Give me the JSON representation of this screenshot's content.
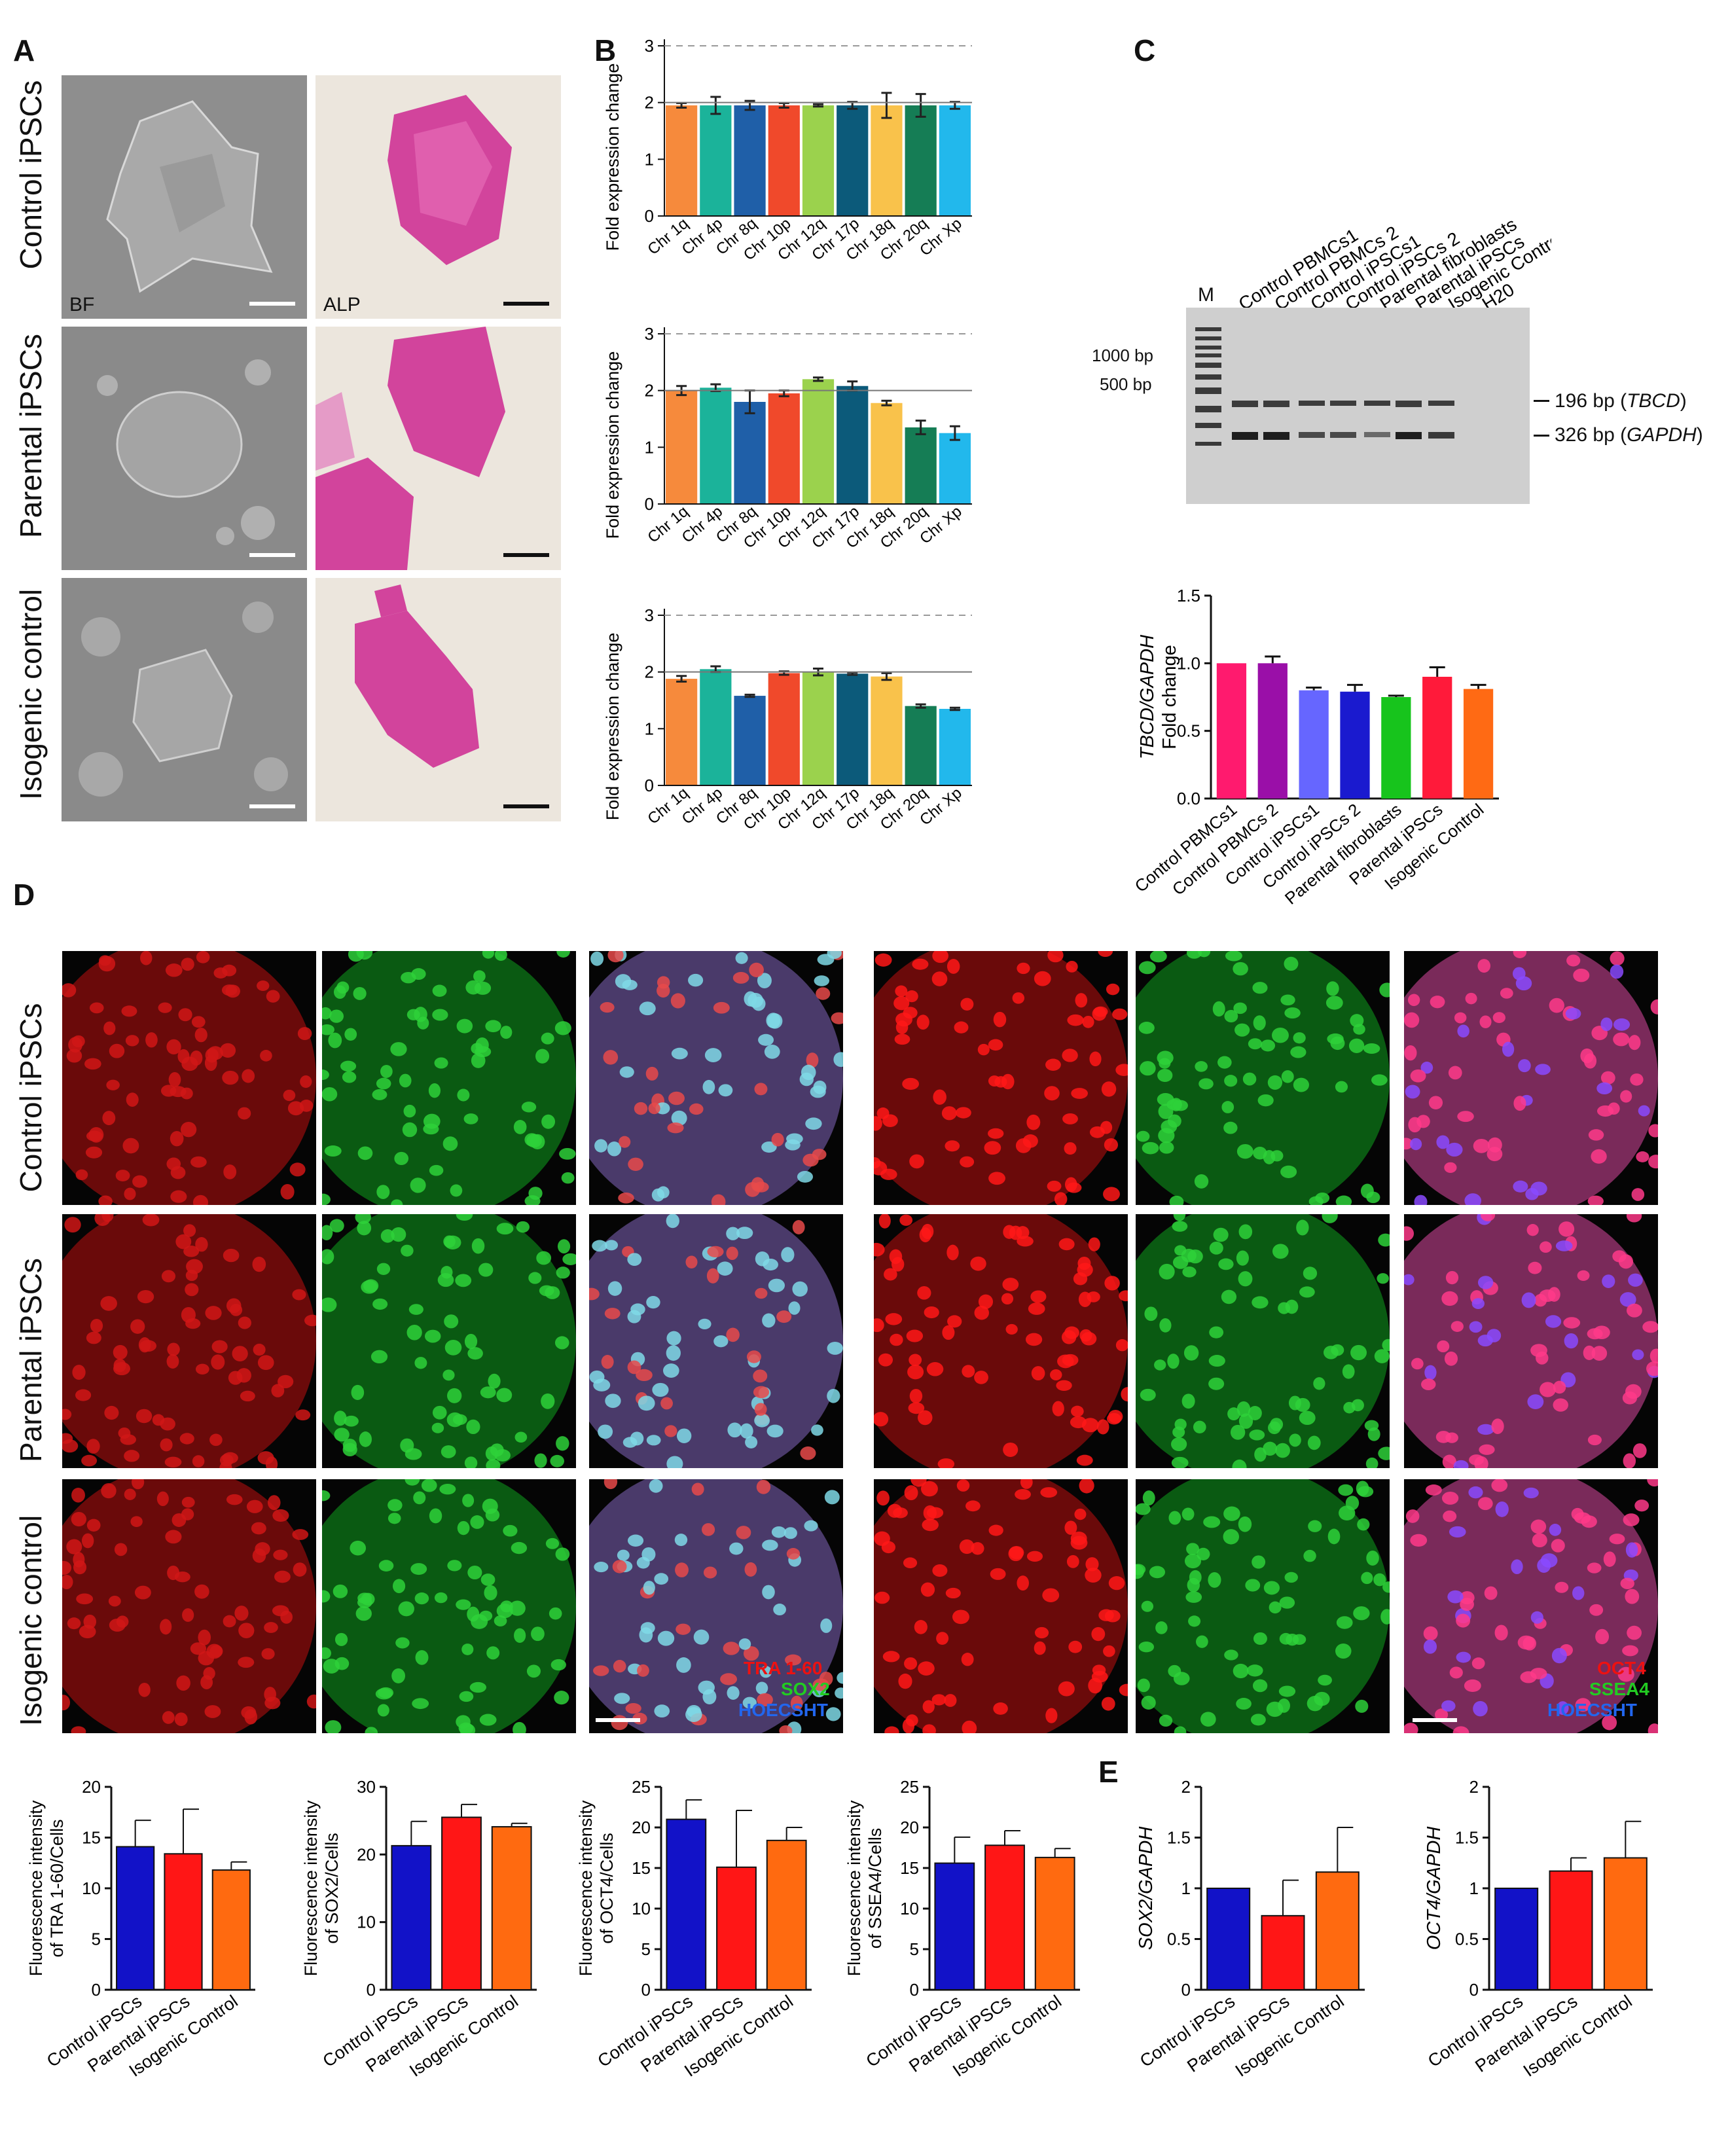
{
  "colors": {
    "chr": [
      "#f68a3c",
      "#1bb39a",
      "#1f5fa8",
      "#f0492b",
      "#9bd24d",
      "#0c5a7a",
      "#f9c24b",
      "#157d55",
      "#22b8ec"
    ],
    "c_chart": [
      "#ff1a6e",
      "#9a0fa8",
      "#6666ff",
      "#1a1acf",
      "#17c41c",
      "#ff1a3a",
      "#ff6a14"
    ],
    "trio": [
      "#1212c8",
      "#ff1616",
      "#ff6a10"
    ],
    "micro_red": "#c8141a",
    "micro_green": "#1fae2a",
    "micro_blue": "#1a2ad8",
    "alp_pink": "#d2449c"
  },
  "panels": {
    "A": "A",
    "B": "B",
    "C": "C",
    "D": "D",
    "E": "E"
  },
  "panel_a": {
    "rows": [
      "Control iPSCs",
      "Parental iPSCs",
      "Isogenic control"
    ],
    "tag_bf": "BF",
    "tag_alp": "ALP"
  },
  "panel_d": {
    "rows": [
      "Control iPSCs",
      "Parental iPSCs",
      "Isogenic control"
    ],
    "legend_left": [
      "TRA 1-60",
      "SOX2",
      "HOECSHT"
    ],
    "legend_right": [
      "OCT4",
      "SSEA4",
      "HOECSHT"
    ]
  },
  "gel": {
    "marker_label": "M",
    "lanes": [
      "Control PBMCs1",
      "Control PBMCs 2",
      "Control iPSCs1",
      "Control iPSCs 2",
      "Parental fibroblasts",
      "Parental iPSCs",
      "Isogenic Control",
      "H20"
    ],
    "ladder": [
      "1000 bp",
      "500 bp"
    ],
    "band_tbcd_size": "196 bp",
    "band_tbcd_gene": "TBCD",
    "band_gapdh_size": "326 bp",
    "band_gapdh_gene": "GAPDH"
  },
  "chart_data": [
    {
      "type": "bar",
      "id": "B1",
      "ylabel": "Fold expression change",
      "categories": [
        "Chr 1q",
        "Chr 4p",
        "Chr 8q",
        "Chr 10p",
        "Chr 12q",
        "Chr 17p",
        "Chr 18q",
        "Chr 20q",
        "Chr Xp"
      ],
      "values": [
        1.95,
        1.95,
        1.95,
        1.95,
        1.95,
        1.95,
        1.95,
        1.95,
        1.95
      ],
      "errors": [
        0.04,
        0.15,
        0.08,
        0.04,
        0.02,
        0.06,
        0.22,
        0.2,
        0.06
      ],
      "ylim": [
        0,
        3
      ],
      "yticks": [
        "0",
        "1",
        "2",
        "3"
      ],
      "refline": 2,
      "dashline": 3
    },
    {
      "type": "bar",
      "id": "B2",
      "ylabel": "Fold expression change",
      "categories": [
        "Chr 1q",
        "Chr 4p",
        "Chr 8q",
        "Chr 10p",
        "Chr 12q",
        "Chr 17p",
        "Chr 18q",
        "Chr 20q",
        "Chr Xp"
      ],
      "values": [
        2.0,
        2.05,
        1.8,
        1.95,
        2.2,
        2.08,
        1.78,
        1.35,
        1.25
      ],
      "errors": [
        0.08,
        0.06,
        0.2,
        0.05,
        0.03,
        0.08,
        0.04,
        0.12,
        0.12
      ],
      "ylim": [
        0,
        3
      ],
      "yticks": [
        "0",
        "1",
        "2",
        "3"
      ],
      "refline": 2,
      "dashline": 3
    },
    {
      "type": "bar",
      "id": "B3",
      "ylabel": "Fold expression change",
      "categories": [
        "Chr 1q",
        "Chr 4p",
        "Chr 8q",
        "Chr 10p",
        "Chr 12q",
        "Chr 17p",
        "Chr 18q",
        "Chr 20q",
        "Chr Xp"
      ],
      "values": [
        1.88,
        2.05,
        1.58,
        1.98,
        2.0,
        1.97,
        1.92,
        1.4,
        1.35
      ],
      "errors": [
        0.05,
        0.05,
        0.02,
        0.03,
        0.06,
        0.02,
        0.06,
        0.03,
        0.02
      ],
      "ylim": [
        0,
        3
      ],
      "yticks": [
        "0",
        "1",
        "2",
        "3"
      ],
      "refline": 2,
      "dashline": 3
    },
    {
      "type": "bar",
      "id": "C",
      "ylabel_gene": "TBCD/GAPDH",
      "ylabel": "Fold change",
      "categories": [
        "Control PBMCs1",
        "Control PBMCs 2",
        "Control iPSCs1",
        "Control iPSCs 2",
        "Parental fibroblasts",
        "Parental iPSCs",
        "Isogenic Control"
      ],
      "values": [
        1.0,
        1.0,
        0.8,
        0.79,
        0.75,
        0.9,
        0.81
      ],
      "errors": [
        0,
        0.05,
        0.02,
        0.05,
        0.01,
        0.07,
        0.03
      ],
      "ylim": [
        0,
        1.5
      ],
      "yticks": [
        "0.0",
        "0.5",
        "1.0",
        "1.5"
      ]
    },
    {
      "type": "bar",
      "id": "D1",
      "ylabel_line1": "Fluorescence intensity",
      "ylabel_line2": "of TRA 1-60/Cells",
      "categories": [
        "Control iPSCs",
        "Parental iPSCs",
        "Isogenic Control"
      ],
      "values": [
        14.1,
        13.4,
        11.8
      ],
      "errors": [
        2.6,
        4.4,
        0.8
      ],
      "ylim": [
        0,
        20
      ],
      "yticks": [
        "0",
        "5",
        "10",
        "15",
        "20"
      ]
    },
    {
      "type": "bar",
      "id": "D2",
      "ylabel_line1": "Fluorescence intensity",
      "ylabel_line2": "of SOX2/Cells",
      "categories": [
        "Control iPSCs",
        "Parental iPSCs",
        "Isogenic Control"
      ],
      "values": [
        21.3,
        25.5,
        24.1
      ],
      "errors": [
        3.6,
        1.9,
        0.5
      ],
      "ylim": [
        0,
        30
      ],
      "yticks": [
        "0",
        "10",
        "20",
        "30"
      ]
    },
    {
      "type": "bar",
      "id": "D3",
      "ylabel_line1": "Fluorescence intensity",
      "ylabel_line2": "of OCT4/Cells",
      "categories": [
        "Control iPSCs",
        "Parental iPSCs",
        "Isogenic Control"
      ],
      "values": [
        21.0,
        15.1,
        18.4
      ],
      "errors": [
        2.4,
        7.0,
        1.6
      ],
      "ylim": [
        0,
        25
      ],
      "yticks": [
        "0",
        "5",
        "10",
        "15",
        "20",
        "25"
      ]
    },
    {
      "type": "bar",
      "id": "D4",
      "ylabel_line1": "Fluorescence intensity",
      "ylabel_line2": "of SSEA4/Cells",
      "categories": [
        "Control iPSCs",
        "Parental iPSCs",
        "Isogenic Control"
      ],
      "values": [
        15.6,
        17.8,
        16.3
      ],
      "errors": [
        3.2,
        1.8,
        1.1
      ],
      "ylim": [
        0,
        25
      ],
      "yticks": [
        "0",
        "5",
        "10",
        "15",
        "20",
        "25"
      ]
    },
    {
      "type": "bar",
      "id": "E1",
      "ylabel": "SOX2/GAPDH",
      "categories": [
        "Control iPSCs",
        "Parental iPSCs",
        "Isogenic Control"
      ],
      "values": [
        1.0,
        0.73,
        1.16
      ],
      "errors": [
        0,
        0.35,
        0.44
      ],
      "ylim": [
        0,
        2
      ],
      "yticks": [
        "0",
        "0.5",
        "1",
        "1.5",
        "2"
      ]
    },
    {
      "type": "bar",
      "id": "E2",
      "ylabel": "OCT4/GAPDH",
      "categories": [
        "Control iPSCs",
        "Parental iPSCs",
        "Isogenic Control"
      ],
      "values": [
        1.0,
        1.17,
        1.3
      ],
      "errors": [
        0,
        0.13,
        0.36
      ],
      "ylim": [
        0,
        2
      ],
      "yticks": [
        "0",
        "0.5",
        "1",
        "1.5",
        "2"
      ]
    }
  ]
}
